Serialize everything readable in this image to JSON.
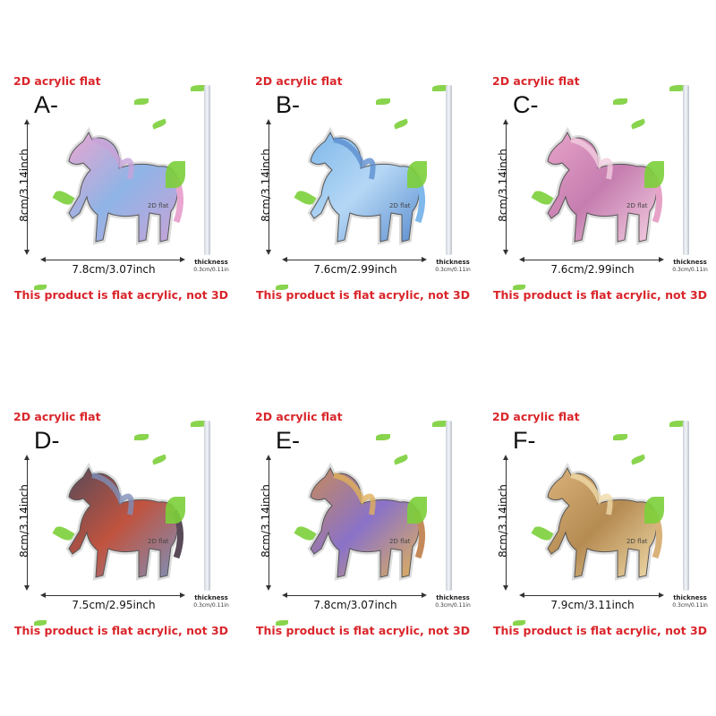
{
  "common": {
    "title": "2D acrylic flat",
    "height_label": "8cm/3.14inch",
    "thickness_label": "thickness",
    "thickness_value": "0.3cm/0.11in",
    "footer": "This product is flat acrylic, not 3D",
    "badge": "2D flat"
  },
  "panels": [
    {
      "letter": "A-",
      "width_label": "7.8cm/3.07inch",
      "colors": [
        "#e9a6d0",
        "#8fb4e6",
        "#c7a3d8"
      ]
    },
    {
      "letter": "B-",
      "width_label": "7.6cm/2.99inch",
      "colors": [
        "#7fb8ea",
        "#b5d7f5",
        "#5d8fd0"
      ]
    },
    {
      "letter": "C-",
      "width_label": "7.6cm/2.99inch",
      "colors": [
        "#e6a3c7",
        "#c57db0",
        "#f3cde0"
      ]
    },
    {
      "letter": "D-",
      "width_label": "7.5cm/2.95inch",
      "colors": [
        "#5a4a58",
        "#c0533f",
        "#7f8fb8"
      ]
    },
    {
      "letter": "E-",
      "width_label": "7.8cm/3.07inch",
      "colors": [
        "#c58a5c",
        "#8a72c8",
        "#e0b05a"
      ]
    },
    {
      "letter": "F-",
      "width_label": "7.9cm/3.11inch",
      "colors": [
        "#d9b27a",
        "#b58b52",
        "#efd9a8"
      ]
    }
  ]
}
